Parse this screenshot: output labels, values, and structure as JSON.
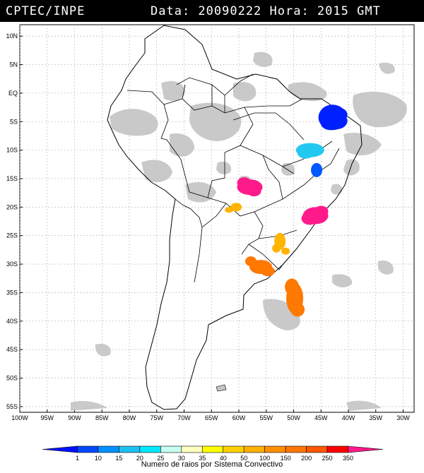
{
  "title": {
    "left": "CPTEC/INPE",
    "right": "Data: 20090222 Hora: 2015 GMT"
  },
  "map": {
    "lat_range": [
      -56,
      12
    ],
    "lon_range": [
      -100,
      -28
    ],
    "lat_ticks": [
      {
        "value": 10,
        "label": "10N"
      },
      {
        "value": 5,
        "label": "5N"
      },
      {
        "value": 0,
        "label": "EQ"
      },
      {
        "value": -5,
        "label": "5S"
      },
      {
        "value": -10,
        "label": "10S"
      },
      {
        "value": -15,
        "label": "15S"
      },
      {
        "value": -20,
        "label": "20S"
      },
      {
        "value": -25,
        "label": "25S"
      },
      {
        "value": -30,
        "label": "30S"
      },
      {
        "value": -35,
        "label": "35S"
      },
      {
        "value": -40,
        "label": "40S"
      },
      {
        "value": -45,
        "label": "45S"
      },
      {
        "value": -50,
        "label": "50S"
      },
      {
        "value": -55,
        "label": "55S"
      }
    ],
    "lon_ticks": [
      {
        "value": -100,
        "label": "100W"
      },
      {
        "value": -95,
        "label": "95W"
      },
      {
        "value": -90,
        "label": "90W"
      },
      {
        "value": -85,
        "label": "85W"
      },
      {
        "value": -80,
        "label": "80W"
      },
      {
        "value": -75,
        "label": "75W"
      },
      {
        "value": -70,
        "label": "70W"
      },
      {
        "value": -65,
        "label": "65W"
      },
      {
        "value": -60,
        "label": "60W"
      },
      {
        "value": -55,
        "label": "55W"
      },
      {
        "value": -50,
        "label": "50W"
      },
      {
        "value": -45,
        "label": "45W"
      },
      {
        "value": -40,
        "label": "40W"
      },
      {
        "value": -35,
        "label": "35W"
      },
      {
        "value": -30,
        "label": "30W"
      }
    ],
    "grid": true,
    "colors": {
      "land_outline": "#000000",
      "grid": "#999999",
      "cloud": "#c4c4c4"
    }
  },
  "lightning_systems": [
    {
      "lon": -42.5,
      "lat": -4.5,
      "class": "1-10",
      "color": "#0020ff"
    },
    {
      "lon": -47,
      "lat": -10,
      "class": "20-25",
      "color": "#22c8f0"
    },
    {
      "lon": -45.8,
      "lat": -13.5,
      "class": "10-15",
      "color": "#0058ff"
    },
    {
      "lon": -58,
      "lat": -16.5,
      "class": "250-350",
      "color": "#ff1a8c"
    },
    {
      "lon": -46,
      "lat": -21.5,
      "class": "250-350",
      "color": "#ff1a8c"
    },
    {
      "lon": -60.5,
      "lat": -20,
      "class": "50-100",
      "color": "#ffb400"
    },
    {
      "lon": -52.5,
      "lat": -26,
      "class": "50-100",
      "color": "#ffb400"
    },
    {
      "lon": -56,
      "lat": -30.5,
      "class": "150-200",
      "color": "#ff7800"
    },
    {
      "lon": -49.8,
      "lat": -36,
      "class": "150-200",
      "color": "#ff7800"
    }
  ],
  "colorbar": {
    "colors": [
      "#0010ff",
      "#0048ff",
      "#0090ff",
      "#20c0f0",
      "#00e8ff",
      "#c8fff0",
      "#ffffc0",
      "#ffff00",
      "#ffd000",
      "#ffb000",
      "#ff9000",
      "#ff7800",
      "#ff5800",
      "#ff0000",
      "#ff1a8c"
    ],
    "labels": [
      "1",
      "10",
      "15",
      "20",
      "25",
      "30",
      "35",
      "40",
      "50",
      "100",
      "150",
      "200",
      "250",
      "350"
    ],
    "label": "Numero de raios por Sistema Convectivo"
  }
}
